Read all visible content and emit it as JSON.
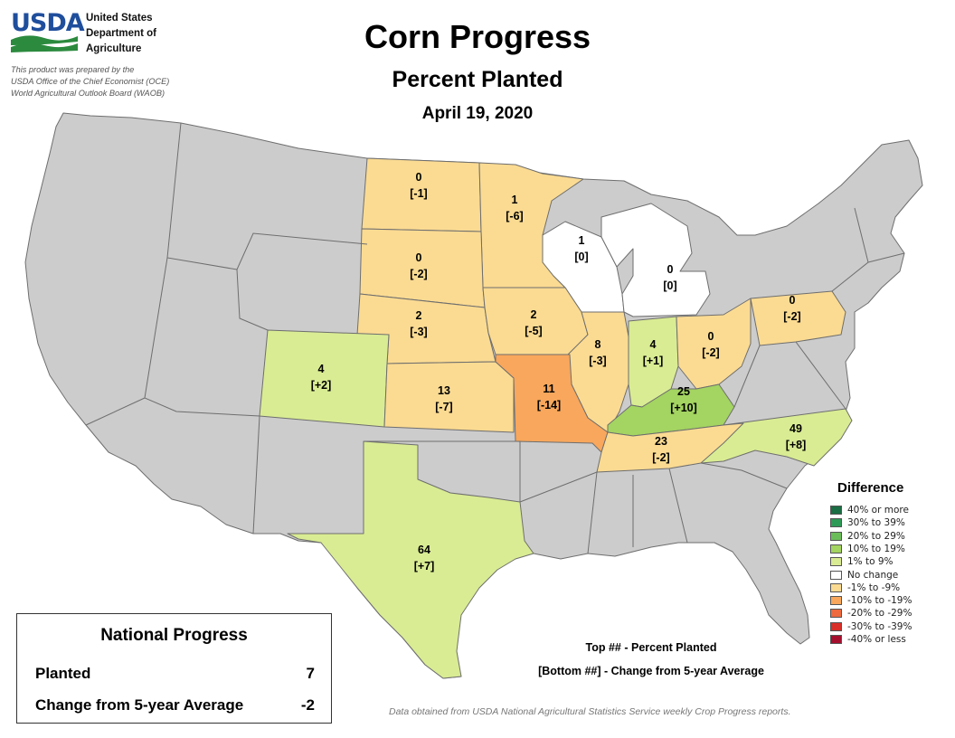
{
  "header": {
    "logo_text": "USDA",
    "agency_lines": [
      "United States",
      "Department of",
      "Agriculture"
    ],
    "credit_lines": [
      "This product was prepared by the",
      "USDA Office of the Chief Economist (OCE)",
      "World Agricultural Outlook Board (WAOB)"
    ],
    "title": "Corn Progress",
    "subtitle": "Percent Planted",
    "date": "April 19, 2020"
  },
  "colors": {
    "no_data": "#cccccc",
    "no_change": "#ffffff",
    "minus_1_9": "#fbdb92",
    "minus_10_19": "#f8a75c",
    "plus_1_9": "#d9ec93",
    "plus_10_19": "#a4d461"
  },
  "states": [
    {
      "name": "North Dakota",
      "planted": "0",
      "change": "[-1]",
      "category": "minus_1_9"
    },
    {
      "name": "Minnesota",
      "planted": "1",
      "change": "[-6]",
      "category": "minus_1_9"
    },
    {
      "name": "Wisconsin",
      "planted": "1",
      "change": "[0]",
      "category": "no_change"
    },
    {
      "name": "Michigan",
      "planted": "0",
      "change": "[0]",
      "category": "no_change"
    },
    {
      "name": "South Dakota",
      "planted": "0",
      "change": "[-2]",
      "category": "minus_1_9"
    },
    {
      "name": "Pennsylvania",
      "planted": "0",
      "change": "[-2]",
      "category": "minus_1_9"
    },
    {
      "name": "Nebraska",
      "planted": "2",
      "change": "[-3]",
      "category": "minus_1_9"
    },
    {
      "name": "Iowa",
      "planted": "2",
      "change": "[-5]",
      "category": "minus_1_9"
    },
    {
      "name": "Illinois",
      "planted": "8",
      "change": "[-3]",
      "category": "minus_1_9"
    },
    {
      "name": "Indiana",
      "planted": "4",
      "change": "[+1]",
      "category": "plus_1_9"
    },
    {
      "name": "Ohio",
      "planted": "0",
      "change": "[-2]",
      "category": "minus_1_9"
    },
    {
      "name": "Colorado",
      "planted": "4",
      "change": "[+2]",
      "category": "plus_1_9"
    },
    {
      "name": "Kansas",
      "planted": "13",
      "change": "[-7]",
      "category": "minus_1_9"
    },
    {
      "name": "Missouri",
      "planted": "11",
      "change": "[-14]",
      "category": "minus_10_19"
    },
    {
      "name": "Kentucky",
      "planted": "25",
      "change": "[+10]",
      "category": "plus_10_19"
    },
    {
      "name": "North Carolina",
      "planted": "49",
      "change": "[+8]",
      "category": "plus_1_9"
    },
    {
      "name": "Tennessee",
      "planted": "23",
      "change": "[-2]",
      "category": "minus_1_9"
    },
    {
      "name": "Texas",
      "planted": "64",
      "change": "[+7]",
      "category": "plus_1_9"
    }
  ],
  "legend": {
    "title": "Difference",
    "items": [
      {
        "label": "40% or more",
        "color": "#1b6d43"
      },
      {
        "label": "30% to 39%",
        "color": "#2e9a57"
      },
      {
        "label": "20% to 29%",
        "color": "#6bbd5a"
      },
      {
        "label": "10% to 19%",
        "color": "#a4d461"
      },
      {
        "label": "1% to 9%",
        "color": "#d9ec93"
      },
      {
        "label": "No change",
        "color": "#ffffff"
      },
      {
        "label": "-1% to -9%",
        "color": "#fbdb92"
      },
      {
        "label": "-10% to -19%",
        "color": "#f8a75c"
      },
      {
        "label": "-20% to -29%",
        "color": "#ee6a3f"
      },
      {
        "label": "-30% to -39%",
        "color": "#d82f29"
      },
      {
        "label": "-40% or less",
        "color": "#a50f2d"
      }
    ]
  },
  "key": {
    "top": "Top ## - Percent Planted",
    "bottom": "[Bottom ##] - Change from 5-year Average"
  },
  "national": {
    "title": "National Progress",
    "planted_label": "Planted",
    "planted_value": "7",
    "change_label": "Change from 5-year Average",
    "change_value": "-2"
  },
  "source_note": "Data obtained from USDA National Agricultural Statistics Service weekly Crop Progress reports."
}
